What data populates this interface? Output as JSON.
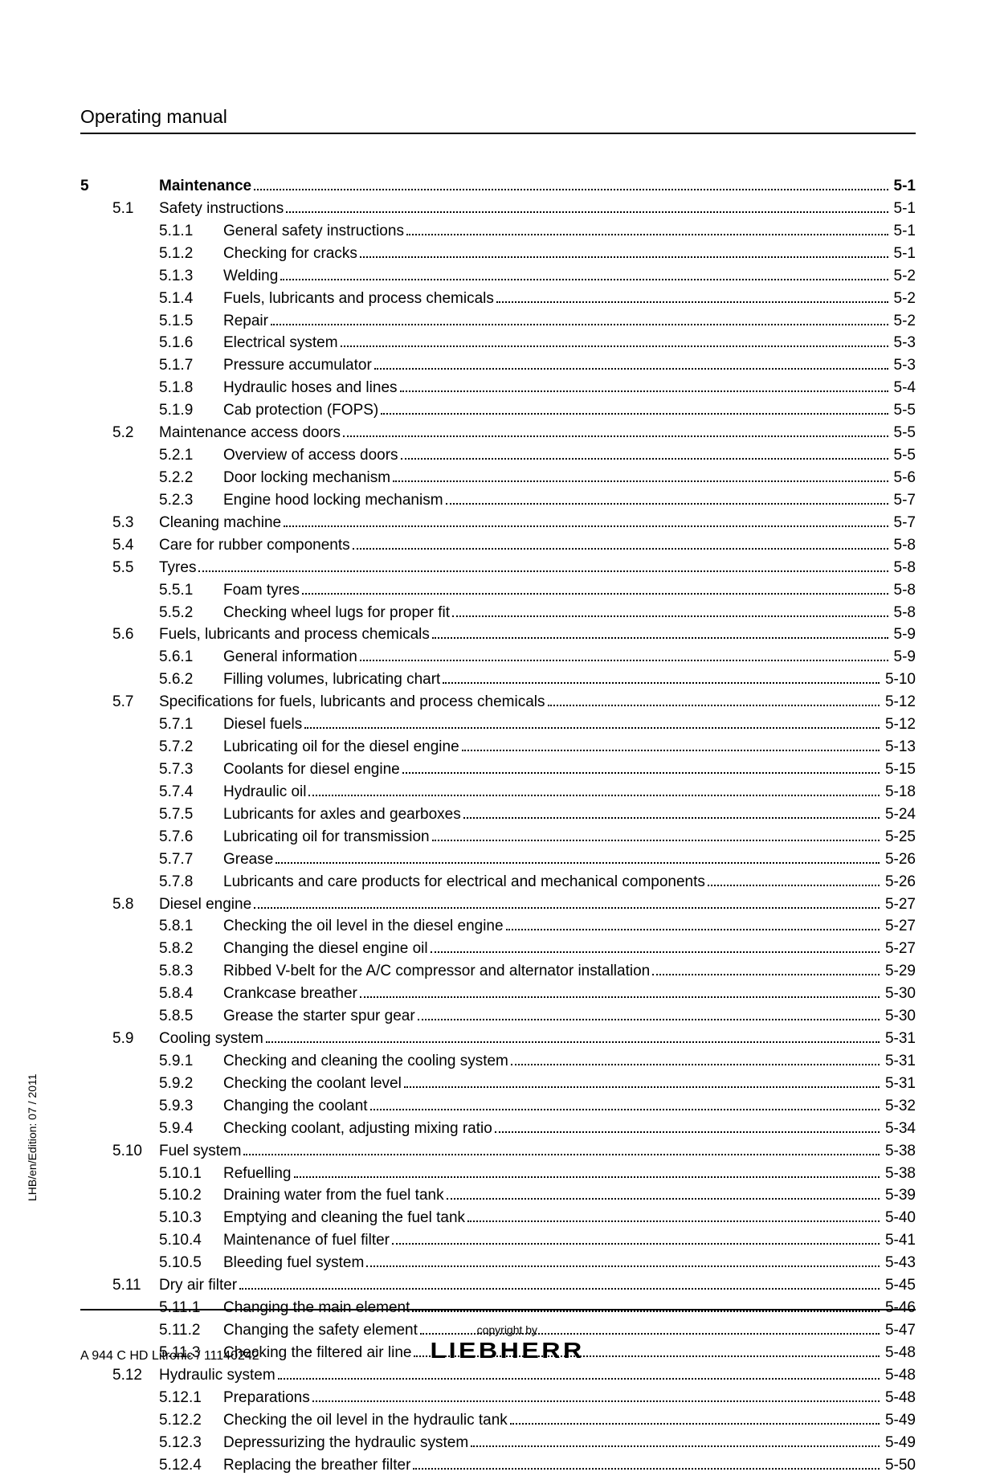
{
  "header": {
    "title": "Operating manual"
  },
  "side_label": "LHB/en/Edition: 07 / 2011",
  "footer": {
    "left": "A 944 C HD Litronic / 11140242",
    "copyright": "copyright by",
    "brand": "LIEBHERR"
  },
  "toc": {
    "chapter": {
      "num": "5",
      "title": "Maintenance",
      "page": "5-1"
    },
    "entries": [
      {
        "level": 1,
        "num": "5.1",
        "title": "Safety instructions",
        "page": "5-1"
      },
      {
        "level": 2,
        "num": "5.1.1",
        "title": "General safety instructions",
        "page": "5-1"
      },
      {
        "level": 2,
        "num": "5.1.2",
        "title": "Checking for cracks",
        "page": "5-1"
      },
      {
        "level": 2,
        "num": "5.1.3",
        "title": "Welding",
        "page": "5-2"
      },
      {
        "level": 2,
        "num": "5.1.4",
        "title": "Fuels, lubricants and process chemicals",
        "page": "5-2"
      },
      {
        "level": 2,
        "num": "5.1.5",
        "title": "Repair",
        "page": "5-2"
      },
      {
        "level": 2,
        "num": "5.1.6",
        "title": "Electrical system",
        "page": "5-3"
      },
      {
        "level": 2,
        "num": "5.1.7",
        "title": "Pressure accumulator",
        "page": "5-3"
      },
      {
        "level": 2,
        "num": "5.1.8",
        "title": "Hydraulic hoses and lines",
        "page": "5-4"
      },
      {
        "level": 2,
        "num": "5.1.9",
        "title": "Cab protection (FOPS)",
        "page": "5-5"
      },
      {
        "level": 1,
        "num": "5.2",
        "title": "Maintenance access doors",
        "page": "5-5"
      },
      {
        "level": 2,
        "num": "5.2.1",
        "title": "Overview of access doors",
        "page": "5-5"
      },
      {
        "level": 2,
        "num": "5.2.2",
        "title": "Door locking mechanism",
        "page": "5-6"
      },
      {
        "level": 2,
        "num": "5.2.3",
        "title": "Engine hood locking mechanism",
        "page": "5-7"
      },
      {
        "level": 1,
        "num": "5.3",
        "title": "Cleaning machine",
        "page": "5-7"
      },
      {
        "level": 1,
        "num": "5.4",
        "title": "Care for rubber components",
        "page": "5-8"
      },
      {
        "level": 1,
        "num": "5.5",
        "title": "Tyres",
        "page": "5-8"
      },
      {
        "level": 2,
        "num": "5.5.1",
        "title": "Foam tyres",
        "page": "5-8"
      },
      {
        "level": 2,
        "num": "5.5.2",
        "title": "Checking wheel lugs for proper fit",
        "page": "5-8"
      },
      {
        "level": 1,
        "num": "5.6",
        "title": "Fuels, lubricants and process chemicals",
        "page": "5-9"
      },
      {
        "level": 2,
        "num": "5.6.1",
        "title": "General information",
        "page": "5-9"
      },
      {
        "level": 2,
        "num": "5.6.2",
        "title": "Filling volumes, lubricating chart",
        "page": "5-10"
      },
      {
        "level": 1,
        "num": "5.7",
        "title": "Specifications for fuels, lubricants and process chemicals",
        "page": "5-12"
      },
      {
        "level": 2,
        "num": "5.7.1",
        "title": "Diesel fuels",
        "page": "5-12"
      },
      {
        "level": 2,
        "num": "5.7.2",
        "title": "Lubricating oil for the diesel engine",
        "page": "5-13"
      },
      {
        "level": 2,
        "num": "5.7.3",
        "title": "Coolants for diesel engine",
        "page": "5-15"
      },
      {
        "level": 2,
        "num": "5.7.4",
        "title": "Hydraulic oil",
        "page": "5-18"
      },
      {
        "level": 2,
        "num": "5.7.5",
        "title": "Lubricants for axles and gearboxes",
        "page": "5-24"
      },
      {
        "level": 2,
        "num": "5.7.6",
        "title": "Lubricating oil for transmission",
        "page": "5-25"
      },
      {
        "level": 2,
        "num": "5.7.7",
        "title": "Grease",
        "page": "5-26"
      },
      {
        "level": 2,
        "num": "5.7.8",
        "title": "Lubricants and care products for electrical and mechanical components",
        "page": "5-26"
      },
      {
        "level": 1,
        "num": "5.8",
        "title": "Diesel engine",
        "page": "5-27"
      },
      {
        "level": 2,
        "num": "5.8.1",
        "title": "Checking the oil level in the diesel engine",
        "page": "5-27"
      },
      {
        "level": 2,
        "num": "5.8.2",
        "title": "Changing the diesel engine oil",
        "page": "5-27"
      },
      {
        "level": 2,
        "num": "5.8.3",
        "title": "Ribbed V-belt for the A/C compressor and alternator installation",
        "page": "5-29"
      },
      {
        "level": 2,
        "num": "5.8.4",
        "title": "Crankcase breather",
        "page": "5-30"
      },
      {
        "level": 2,
        "num": "5.8.5",
        "title": "Grease the starter spur gear",
        "page": "5-30"
      },
      {
        "level": 1,
        "num": "5.9",
        "title": "Cooling system",
        "page": "5-31"
      },
      {
        "level": 2,
        "num": "5.9.1",
        "title": "Checking and cleaning the cooling system",
        "page": "5-31"
      },
      {
        "level": 2,
        "num": "5.9.2",
        "title": "Checking the coolant level",
        "page": "5-31"
      },
      {
        "level": 2,
        "num": "5.9.3",
        "title": "Changing the coolant",
        "page": "5-32"
      },
      {
        "level": 2,
        "num": "5.9.4",
        "title": "Checking coolant, adjusting mixing ratio",
        "page": "5-34"
      },
      {
        "level": 1,
        "num": "5.10",
        "title": "Fuel system",
        "page": "5-38"
      },
      {
        "level": 2,
        "num": "5.10.1",
        "title": "Refuelling",
        "page": "5-38"
      },
      {
        "level": 2,
        "num": "5.10.2",
        "title": "Draining water from the fuel tank",
        "page": "5-39"
      },
      {
        "level": 2,
        "num": "5.10.3",
        "title": "Emptying and cleaning the fuel tank",
        "page": "5-40"
      },
      {
        "level": 2,
        "num": "5.10.4",
        "title": "Maintenance of fuel filter",
        "page": "5-41"
      },
      {
        "level": 2,
        "num": "5.10.5",
        "title": "Bleeding fuel system",
        "page": "5-43"
      },
      {
        "level": 1,
        "num": "5.11",
        "title": "Dry air filter",
        "page": "5-45"
      },
      {
        "level": 2,
        "num": "5.11.1",
        "title": "Changing the main element",
        "page": "5-46"
      },
      {
        "level": 2,
        "num": "5.11.2",
        "title": "Changing the safety element",
        "page": "5-47"
      },
      {
        "level": 2,
        "num": "5.11.3",
        "title": "Checking the filtered air line",
        "page": "5-48"
      },
      {
        "level": 1,
        "num": "5.12",
        "title": "Hydraulic system",
        "page": "5-48"
      },
      {
        "level": 2,
        "num": "5.12.1",
        "title": "Preparations",
        "page": "5-48"
      },
      {
        "level": 2,
        "num": "5.12.2",
        "title": "Checking the oil level in the hydraulic tank",
        "page": "5-49"
      },
      {
        "level": 2,
        "num": "5.12.3",
        "title": "Depressurizing the hydraulic system",
        "page": "5-49"
      },
      {
        "level": 2,
        "num": "5.12.4",
        "title": "Replacing the breather filter",
        "page": "5-50"
      }
    ]
  }
}
